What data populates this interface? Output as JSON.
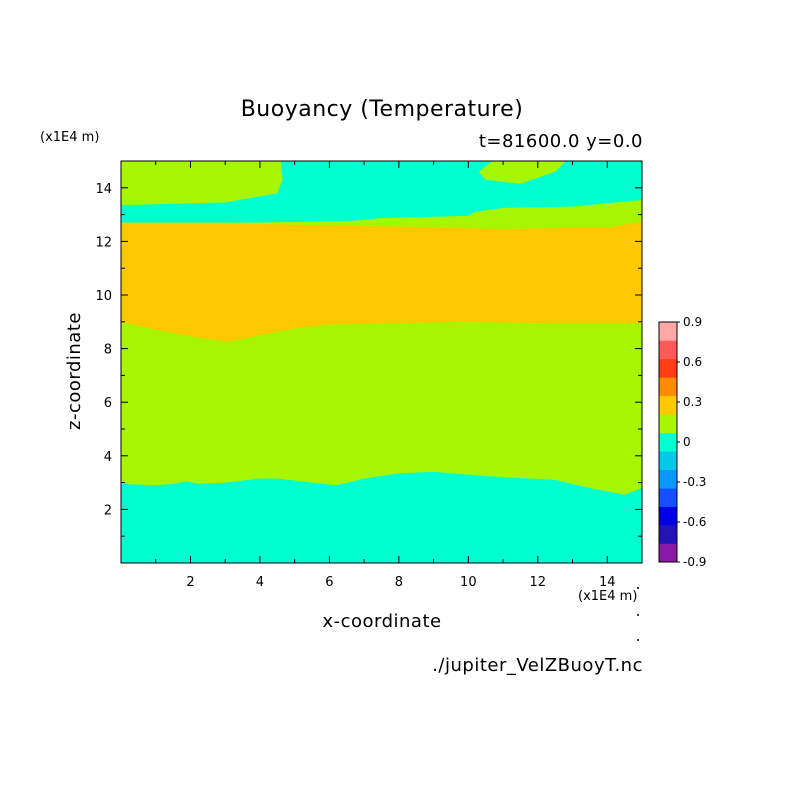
{
  "chart_data": {
    "type": "heatmap",
    "title": "Buoyancy (Temperature)",
    "subtitle": "t=81600.0 y=0.0",
    "xlabel": "x-coordinate",
    "ylabel": "z-coordinate",
    "x_unit": "(x1E4 m)",
    "y_unit": "(x1E4 m)",
    "xlim": [
      0,
      15
    ],
    "ylim": [
      0,
      15
    ],
    "x_ticks": [
      2,
      4,
      6,
      8,
      10,
      12,
      14
    ],
    "y_ticks": [
      2,
      4,
      6,
      8,
      10,
      12,
      14
    ],
    "x_tick_labels": [
      "2",
      "4",
      "6",
      "8",
      "10",
      "12",
      "14"
    ],
    "y_tick_labels": [
      "2",
      "4",
      "6",
      "8",
      "10",
      "12",
      "14"
    ],
    "colorbar": {
      "levels": [
        -0.9,
        -0.75,
        -0.6,
        -0.45,
        -0.3,
        -0.15,
        0,
        0.15,
        0.3,
        0.45,
        0.6,
        0.75,
        0.9
      ],
      "colors": [
        "#8a1aa8",
        "#2414b4",
        "#0000e6",
        "#1450ff",
        "#0a96ff",
        "#00c8e8",
        "#00ffd0",
        "#a8f500",
        "#ffc800",
        "#ff8c00",
        "#ff3c14",
        "#ff5a5a",
        "#ffa8a8"
      ],
      "labels": [
        "0.9",
        "0.6",
        "0.3",
        "0",
        "-0.3",
        "-0.6",
        "-0.9"
      ],
      "label_values": [
        0.9,
        0.6,
        0.3,
        0,
        -0.3,
        -0.6,
        -0.9
      ]
    },
    "regions": [
      {
        "level": "0 to 0.15",
        "color": "#a8f500",
        "boundary": [
          [
            0,
            0
          ],
          [
            15,
            0
          ],
          [
            15,
            15
          ],
          [
            0,
            15
          ]
        ]
      },
      {
        "level": "0.3 to 0.45",
        "color": "#ffc800",
        "boundary": [
          [
            0,
            9.0
          ],
          [
            1,
            8.7
          ],
          [
            2,
            8.45
          ],
          [
            3.1,
            8.25
          ],
          [
            4,
            8.5
          ],
          [
            5,
            8.75
          ],
          [
            6,
            8.9
          ],
          [
            8,
            8.95
          ],
          [
            10,
            9.0
          ],
          [
            12,
            8.95
          ],
          [
            14,
            8.95
          ],
          [
            15,
            8.95
          ],
          [
            15,
            12.75
          ],
          [
            14,
            12.5
          ],
          [
            12.5,
            12.5
          ],
          [
            11,
            12.45
          ],
          [
            10,
            12.5
          ],
          [
            8,
            12.55
          ],
          [
            6,
            12.6
          ],
          [
            4,
            12.65
          ],
          [
            2,
            12.75
          ],
          [
            0,
            12.75
          ]
        ]
      },
      {
        "level": "-0.15 to 0",
        "color": "#00ffd0",
        "boundary": [
          [
            0,
            0
          ],
          [
            15,
            0
          ],
          [
            15,
            2.8
          ],
          [
            14.5,
            2.55
          ],
          [
            13.5,
            2.8
          ],
          [
            12.5,
            3.1
          ],
          [
            11,
            3.2
          ],
          [
            10,
            3.3
          ],
          [
            9,
            3.4
          ],
          [
            8,
            3.35
          ],
          [
            7,
            3.15
          ],
          [
            6.2,
            2.9
          ],
          [
            5.5,
            3.0
          ],
          [
            4.5,
            3.15
          ],
          [
            4,
            3.15
          ],
          [
            3,
            3.0
          ],
          [
            2.2,
            2.95
          ],
          [
            1.9,
            3.05
          ],
          [
            1.5,
            2.95
          ],
          [
            1,
            2.9
          ],
          [
            0,
            2.95
          ]
        ]
      },
      {
        "level": "-0.15 to 0",
        "color": "#00ffd0",
        "boundary": [
          [
            0,
            13.35
          ],
          [
            3,
            13.45
          ],
          [
            4.5,
            13.8
          ],
          [
            4.65,
            14.3
          ],
          [
            4.6,
            15
          ],
          [
            10.7,
            15
          ],
          [
            10.3,
            14.6
          ],
          [
            10.5,
            14.3
          ],
          [
            11.5,
            14.15
          ],
          [
            12.5,
            14.6
          ],
          [
            12.8,
            15
          ],
          [
            15,
            15
          ],
          [
            15,
            13.55
          ],
          [
            13,
            13.3
          ],
          [
            11,
            13.25
          ],
          [
            10.2,
            13.1
          ],
          [
            10,
            12.95
          ],
          [
            8.5,
            12.9
          ],
          [
            7,
            12.85
          ],
          [
            3,
            12.9
          ],
          [
            0,
            12.8
          ],
          [
            0,
            13.1
          ],
          [
            2.5,
            13.05
          ],
          [
            6.5,
            13.1
          ],
          [
            8.2,
            12.95
          ],
          [
            6.5,
            12.75
          ],
          [
            3.5,
            12.7
          ],
          [
            0,
            12.7
          ]
        ]
      }
    ]
  },
  "footer": "./jupiter_VelZBuoyT.nc"
}
